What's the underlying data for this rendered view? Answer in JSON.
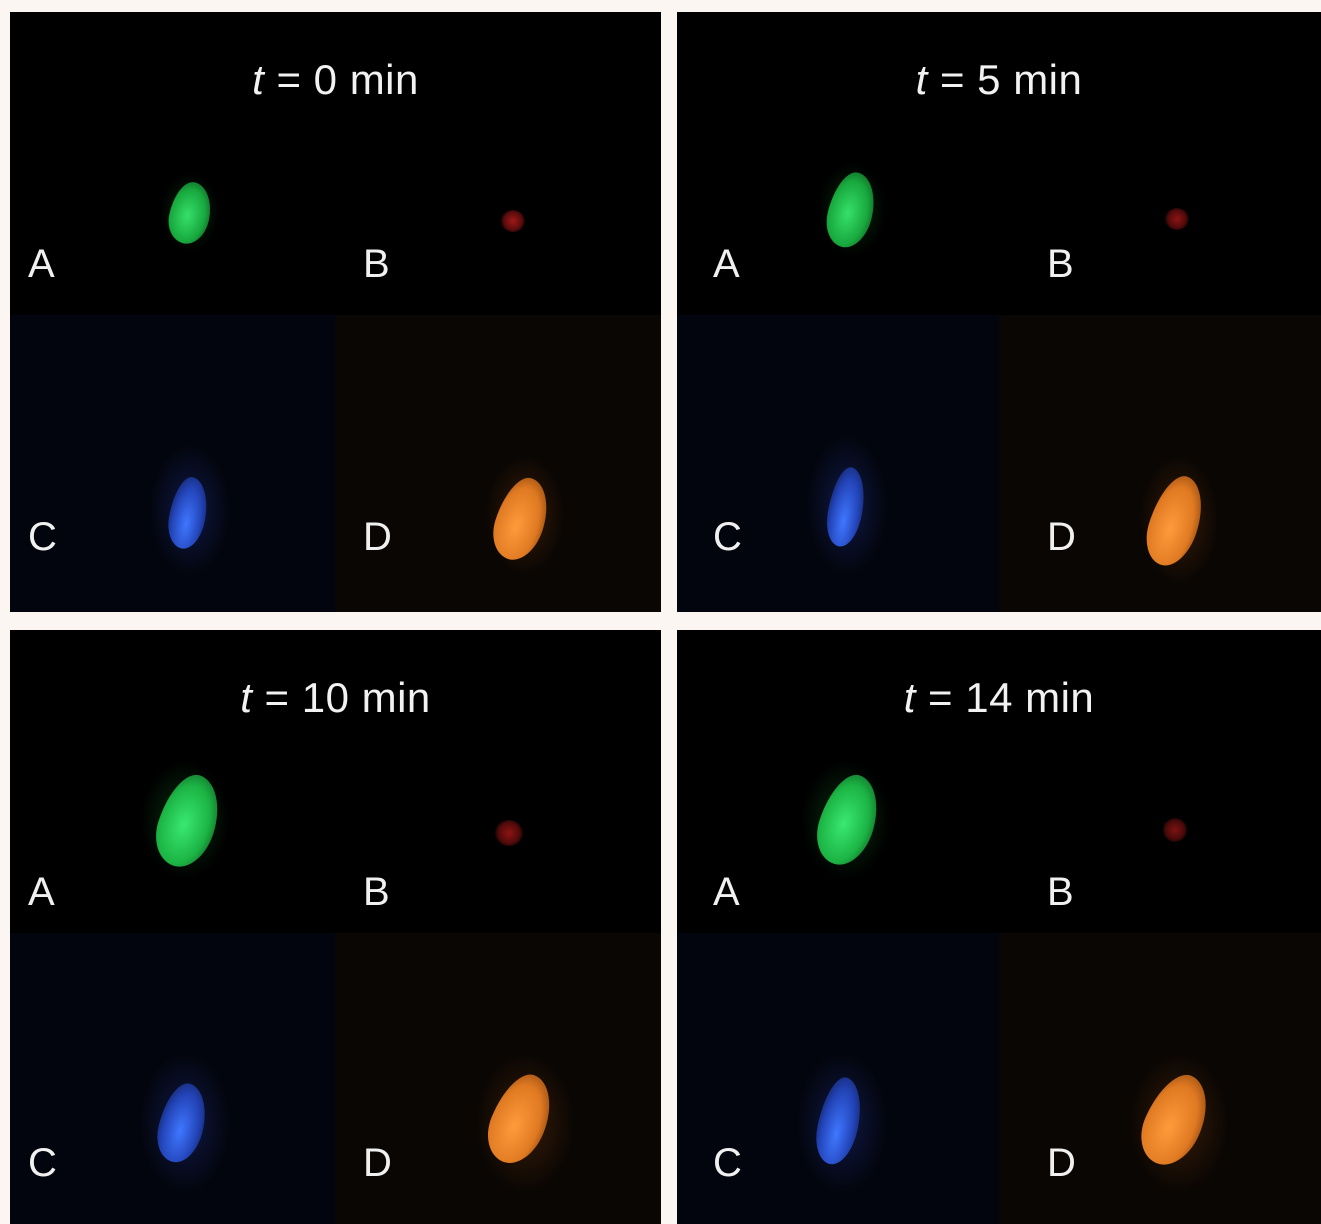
{
  "panels": [
    {
      "t_symbol": "t",
      "rest": " = 0 min"
    },
    {
      "t_symbol": "t",
      "rest": " = 5 min"
    },
    {
      "t_symbol": "t",
      "rest": " = 10 min"
    },
    {
      "t_symbol": "t",
      "rest": " = 14 min"
    }
  ],
  "subpanel_labels": [
    "A",
    "B",
    "C",
    "D"
  ],
  "channel_colors": {
    "A": "#1fc24a",
    "B": "#8a1414",
    "C": "#2f5fe0",
    "D": "#e8842a"
  }
}
